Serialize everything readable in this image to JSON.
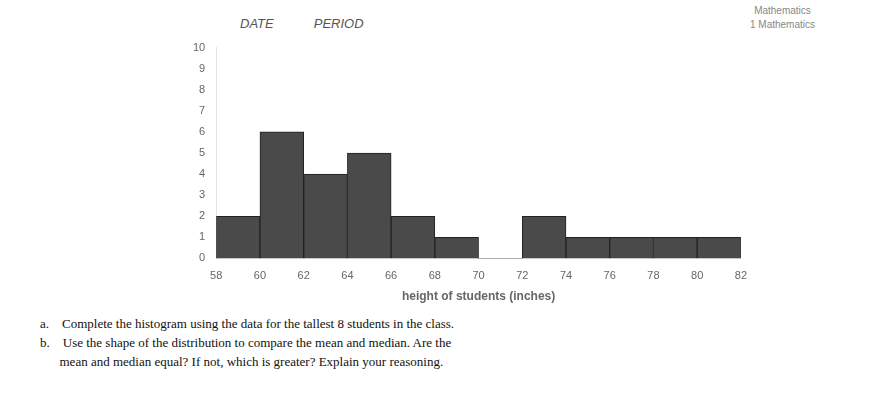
{
  "chart_data": {
    "type": "histogram",
    "bins": [
      58,
      60,
      62,
      64,
      66,
      68,
      70,
      72,
      74,
      76,
      78,
      80,
      82
    ],
    "values": [
      2,
      6,
      4,
      5,
      2,
      1,
      0,
      2,
      1,
      1,
      1,
      1
    ],
    "color": "#4a4a4a",
    "xlabel": "height of students (inches)",
    "xlim": [
      58,
      82
    ],
    "xticks": [
      58,
      60,
      62,
      64,
      66,
      68,
      70,
      72,
      74,
      76,
      78,
      80,
      82
    ],
    "ylim": [
      0,
      10
    ],
    "yticks": [
      0,
      1,
      2,
      3,
      4,
      5,
      6,
      7,
      8,
      9,
      10
    ],
    "grid": false,
    "annotations": [
      "DATE",
      "PERIOD",
      "Mathematics",
      "1 Mathematics",
      "a.    Complete the histogram using the data for the tallest 8 students in the class.",
      "b.    Use the shape of the distribution to compare the mean and median. Are the",
      "      mean and median equal? If not, which is greater? Explain your reasoning."
    ]
  }
}
